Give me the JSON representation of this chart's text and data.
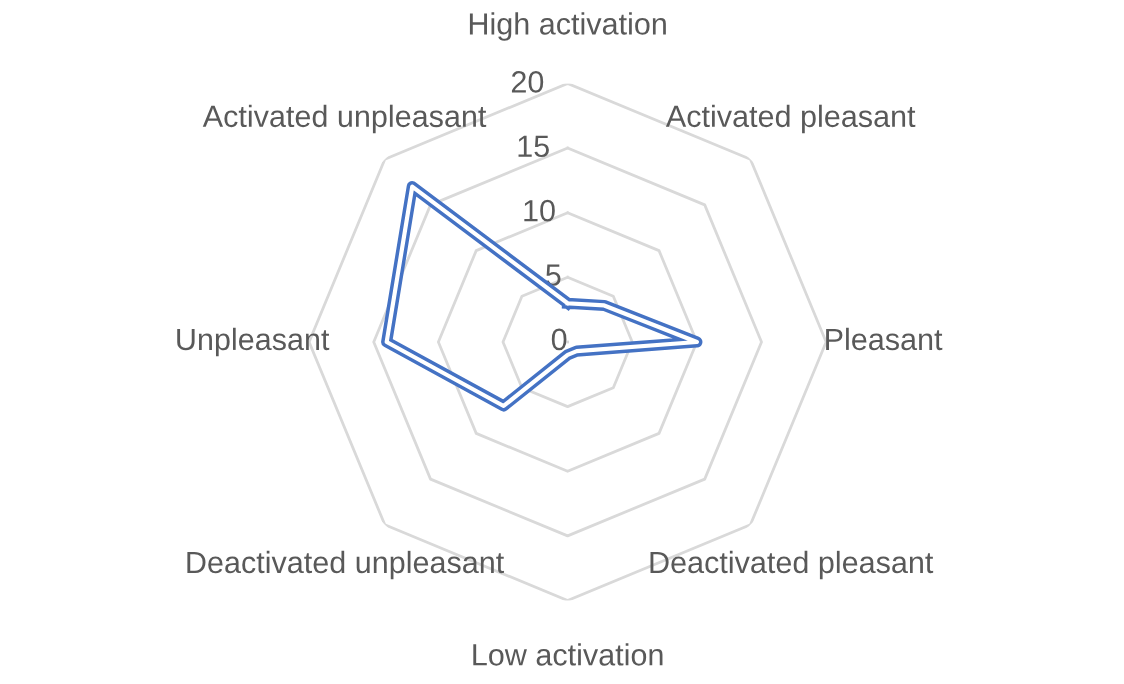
{
  "chart_data": {
    "type": "radar",
    "categories": [
      "High activation",
      "Activated pleasant",
      "Pleasant",
      "Deactivated pleasant",
      "Low activation",
      "Deactivated unpleasant",
      "Unpleasant",
      "Activated unpleasant"
    ],
    "series": [
      {
        "color": "#4472c4",
        "values": [
          3,
          4,
          10,
          1,
          1,
          7,
          14,
          17
        ]
      }
    ],
    "ylim": [
      0,
      20
    ],
    "yticks": [
      0,
      5,
      10,
      15,
      20
    ],
    "grid": true,
    "marker": "none",
    "line_style": "solid"
  }
}
